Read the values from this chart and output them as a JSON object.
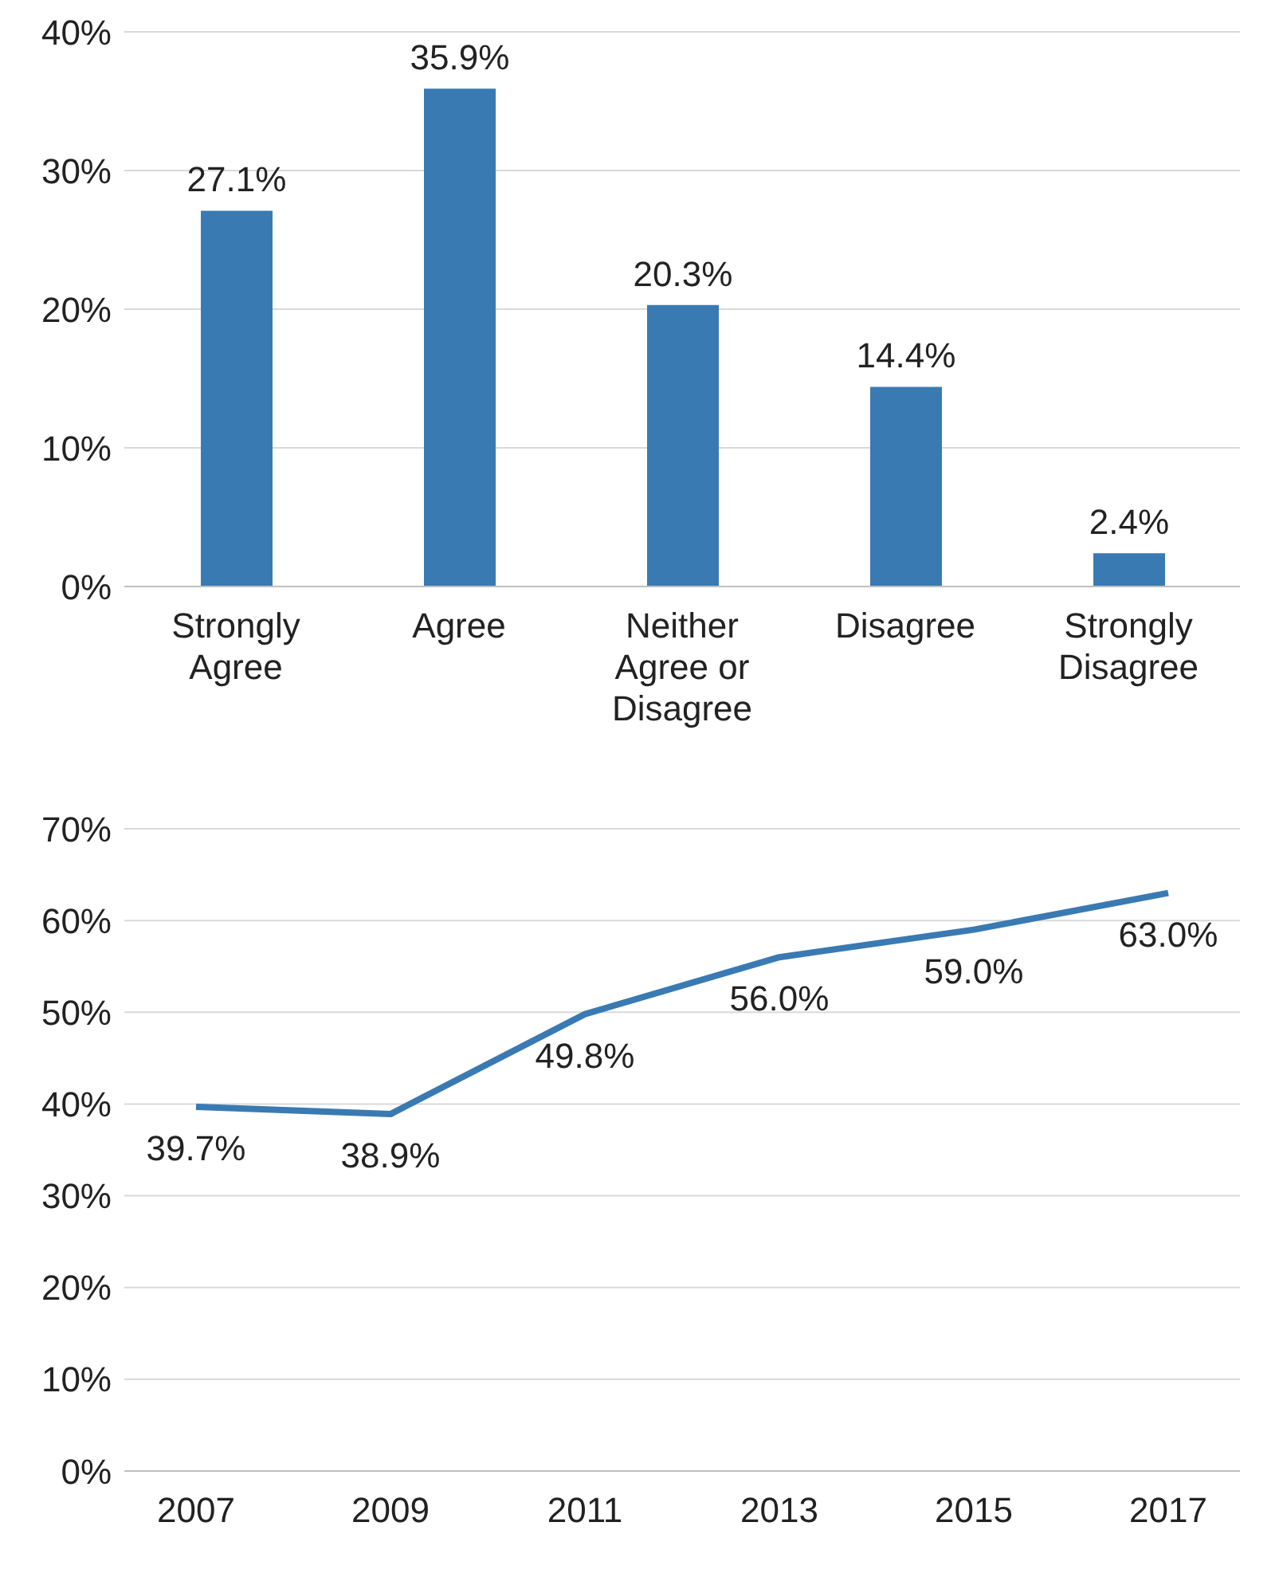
{
  "chart_data": [
    {
      "type": "bar",
      "categories": [
        "Strongly Agree",
        "Agree",
        "Neither Agree or Disagree",
        "Disagree",
        "Strongly Disagree"
      ],
      "values": [
        27.1,
        35.9,
        20.3,
        14.4,
        2.4
      ],
      "color": "#3a7ab3",
      "value_labels": [
        "27.1%",
        "35.9%",
        "20.3%",
        "14.4%",
        "2.4%"
      ],
      "ylim": [
        0,
        40
      ],
      "yticks": [
        {
          "value": 0,
          "label": "0%"
        },
        {
          "value": 10,
          "label": "10%"
        },
        {
          "value": 20,
          "label": "20%"
        },
        {
          "value": 30,
          "label": "30%"
        },
        {
          "value": 40,
          "label": "40%"
        }
      ],
      "grid": "y"
    },
    {
      "type": "line",
      "categories": [
        "2007",
        "2009",
        "2011",
        "2013",
        "2015",
        "2017"
      ],
      "values": [
        39.7,
        38.9,
        49.8,
        56.0,
        59.0,
        63.0
      ],
      "color": "#3a7ab3",
      "value_labels": [
        "39.7%",
        "38.9%",
        "49.8%",
        "56.0%",
        "59.0%",
        "63.0%"
      ],
      "ylim": [
        0,
        70
      ],
      "yticks": [
        {
          "value": 0,
          "label": "0%"
        },
        {
          "value": 10,
          "label": "10%"
        },
        {
          "value": 20,
          "label": "20%"
        },
        {
          "value": 30,
          "label": "30%"
        },
        {
          "value": 40,
          "label": "40%"
        },
        {
          "value": 50,
          "label": "50%"
        },
        {
          "value": 60,
          "label": "60%"
        },
        {
          "value": 70,
          "label": "70%"
        }
      ],
      "grid": "y"
    }
  ]
}
